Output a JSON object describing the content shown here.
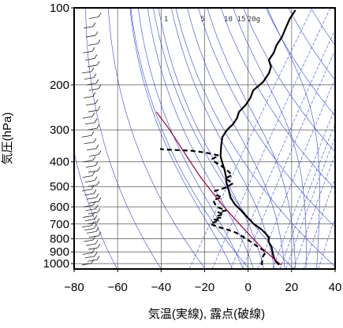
{
  "chart_data": {
    "type": "line",
    "title": "",
    "xlabel": "気温(実線), 露点(破線)",
    "ylabel": "気圧(hPa)",
    "xlim": [
      -80,
      40
    ],
    "ylim": [
      1050,
      100
    ],
    "y_scale": "log",
    "x_ticks": [
      -80,
      -60,
      -40,
      -20,
      0,
      20,
      40
    ],
    "x_tick_labels": [
      "−80",
      "−60",
      "−40",
      "−20",
      "0",
      "20",
      "40"
    ],
    "y_ticks": [
      100,
      200,
      300,
      400,
      500,
      600,
      700,
      800,
      900,
      1000
    ],
    "y_tick_labels": [
      "100",
      "200",
      "300",
      "400",
      "500",
      "600",
      "700",
      "800",
      "900",
      "1000"
    ],
    "grid": true,
    "mixing_ratio_labels": [
      "1",
      "5",
      "10",
      "15",
      "20g"
    ],
    "background_lines": {
      "dry_adiabats_theta_K": [
        210,
        230,
        250,
        270,
        290,
        310,
        330,
        350,
        370,
        390,
        410,
        430,
        450,
        470,
        490,
        510,
        530,
        550
      ],
      "moist_adiabats_theta_w_C": [
        -10,
        -5,
        0,
        5,
        10,
        15,
        20,
        25,
        30
      ],
      "mixing_ratios_g_per_kg": [
        0.4,
        1,
        2,
        3,
        5,
        8,
        10,
        12,
        15,
        20,
        30
      ]
    },
    "series": [
      {
        "name": "",
        "style": "solid",
        "color": "#000000",
        "points": [
          [
            13,
            1012
          ],
          [
            10,
            975
          ],
          [
            8,
            940
          ],
          [
            6,
            900
          ],
          [
            4,
            860
          ],
          [
            1,
            820
          ],
          [
            0,
            790
          ],
          [
            -3,
            760
          ],
          [
            -6,
            735
          ],
          [
            -11,
            700
          ],
          [
            -16,
            660
          ],
          [
            -21,
            620
          ],
          [
            -26,
            585
          ],
          [
            -30,
            550
          ],
          [
            -33,
            515
          ],
          [
            -36,
            485
          ],
          [
            -38,
            460
          ],
          [
            -41,
            430
          ],
          [
            -44,
            405
          ],
          [
            -47,
            380
          ],
          [
            -50,
            345
          ],
          [
            -52,
            320
          ],
          [
            -52,
            300
          ],
          [
            -51,
            285
          ],
          [
            -51,
            270
          ],
          [
            -52,
            255
          ],
          [
            -51,
            240
          ],
          [
            -51,
            225
          ],
          [
            -52,
            210
          ],
          [
            -50,
            195
          ],
          [
            -50,
            180
          ],
          [
            -51,
            170
          ],
          [
            -54,
            160
          ],
          [
            -54,
            150
          ],
          [
            -55,
            140
          ],
          [
            -55,
            130
          ],
          [
            -56,
            120
          ],
          [
            -57,
            110
          ],
          [
            -57,
            102
          ]
        ]
      },
      {
        "name": "",
        "style": "dashed",
        "color": "#000000",
        "points": [
          [
            5,
            1012
          ],
          [
            4,
            975
          ],
          [
            3,
            940
          ],
          [
            3,
            900
          ],
          [
            -1,
            870
          ],
          [
            -6,
            830
          ],
          [
            -10,
            800
          ],
          [
            -13,
            780
          ],
          [
            -17,
            755
          ],
          [
            -22,
            735
          ],
          [
            -27,
            718
          ],
          [
            -31,
            700
          ],
          [
            -30,
            690
          ],
          [
            -28,
            680
          ],
          [
            -31,
            670
          ],
          [
            -28,
            660
          ],
          [
            -30,
            650
          ],
          [
            -28,
            640
          ],
          [
            -31,
            630
          ],
          [
            -28,
            620
          ],
          [
            -32,
            605
          ],
          [
            -35,
            585
          ],
          [
            -37,
            565
          ],
          [
            -34,
            550
          ],
          [
            -37,
            540
          ],
          [
            -39,
            520
          ],
          [
            -35,
            505
          ],
          [
            -33,
            485
          ],
          [
            -38,
            465
          ],
          [
            -36,
            450
          ],
          [
            -40,
            430
          ],
          [
            -45,
            410
          ],
          [
            -48,
            400
          ],
          [
            -50,
            390
          ],
          [
            -48,
            378
          ],
          [
            -55,
            368
          ],
          [
            -62,
            362
          ],
          [
            -75,
            358
          ],
          [
            -77,
            356
          ]
        ]
      },
      {
        "name": "",
        "style": "solid",
        "color": "#990033",
        "points": [
          [
            14,
            1012
          ],
          [
            9,
            960
          ],
          [
            0,
            870
          ],
          [
            -10,
            770
          ],
          [
            -20,
            680
          ],
          [
            -30,
            600
          ],
          [
            -40,
            525
          ],
          [
            -50,
            458
          ],
          [
            -60,
            395
          ],
          [
            -70,
            340
          ],
          [
            -80,
            293
          ],
          [
            -90,
            255
          ]
        ]
      }
    ],
    "wind_barbs_pressure_hPa": [
      1012,
      980,
      950,
      920,
      880,
      850,
      820,
      790,
      760,
      740,
      720,
      700,
      680,
      660,
      640,
      620,
      600,
      580,
      560,
      540,
      520,
      500,
      480,
      460,
      440,
      420,
      400,
      380,
      360,
      340,
      320,
      300,
      285,
      270,
      255,
      240,
      225,
      210,
      200,
      190,
      180,
      170,
      160,
      150,
      140,
      130,
      120,
      110
    ]
  }
}
